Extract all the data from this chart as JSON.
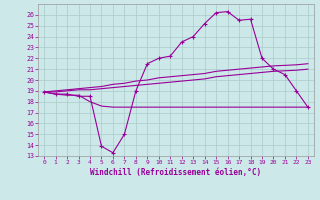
{
  "xlabel": "Windchill (Refroidissement éolien,°C)",
  "bg_color": "#cce8e8",
  "grid_color": "#aacccc",
  "line_color": "#990099",
  "xlim": [
    -0.5,
    23.5
  ],
  "ylim": [
    13,
    27
  ],
  "yticks": [
    13,
    14,
    15,
    16,
    17,
    18,
    19,
    20,
    21,
    22,
    23,
    24,
    25,
    26
  ],
  "xticks": [
    0,
    1,
    2,
    3,
    4,
    5,
    6,
    7,
    8,
    9,
    10,
    11,
    12,
    13,
    14,
    15,
    16,
    17,
    18,
    19,
    20,
    21,
    22,
    23
  ],
  "line1_x": [
    0,
    1,
    2,
    3,
    4,
    5,
    6,
    7,
    8,
    9,
    10,
    11,
    12,
    13,
    14,
    15,
    16,
    17,
    18,
    19,
    20,
    21,
    22,
    23
  ],
  "line1_y": [
    18.9,
    18.7,
    18.7,
    18.5,
    18.5,
    13.9,
    13.3,
    15.0,
    19.0,
    21.5,
    22.0,
    22.2,
    23.5,
    24.0,
    25.2,
    26.2,
    26.3,
    25.5,
    25.6,
    22.0,
    21.0,
    20.5,
    19.0,
    17.5
  ],
  "line2_x": [
    0,
    1,
    2,
    3,
    4,
    5,
    6,
    7,
    8,
    9,
    10,
    11,
    12,
    13,
    14,
    15,
    16,
    17,
    18,
    19,
    20,
    21,
    22,
    23
  ],
  "line2_y": [
    18.9,
    18.7,
    18.6,
    18.6,
    18.0,
    17.6,
    17.5,
    17.5,
    17.5,
    17.5,
    17.5,
    17.5,
    17.5,
    17.5,
    17.5,
    17.5,
    17.5,
    17.5,
    17.5,
    17.5,
    17.5,
    17.5,
    17.5,
    17.5
  ],
  "line3_x": [
    0,
    1,
    2,
    3,
    4,
    5,
    6,
    7,
    8,
    9,
    10,
    11,
    12,
    13,
    14,
    15,
    16,
    17,
    18,
    19,
    20,
    21,
    22,
    23
  ],
  "line3_y": [
    18.9,
    18.9,
    19.0,
    19.1,
    19.1,
    19.2,
    19.3,
    19.4,
    19.5,
    19.6,
    19.7,
    19.8,
    19.9,
    20.0,
    20.1,
    20.3,
    20.4,
    20.5,
    20.6,
    20.7,
    20.8,
    20.85,
    20.9,
    21.0
  ],
  "line4_x": [
    0,
    1,
    2,
    3,
    4,
    5,
    6,
    7,
    8,
    9,
    10,
    11,
    12,
    13,
    14,
    15,
    16,
    17,
    18,
    19,
    20,
    21,
    22,
    23
  ],
  "line4_y": [
    18.9,
    19.0,
    19.1,
    19.2,
    19.3,
    19.4,
    19.6,
    19.7,
    19.9,
    20.0,
    20.2,
    20.3,
    20.4,
    20.5,
    20.6,
    20.8,
    20.9,
    21.0,
    21.1,
    21.2,
    21.3,
    21.35,
    21.4,
    21.5
  ]
}
